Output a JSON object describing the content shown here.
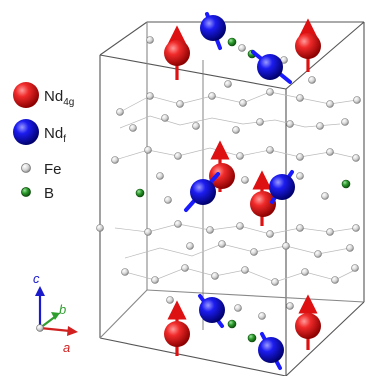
{
  "legend": {
    "items": [
      {
        "key": "nd4g",
        "label": "Nd",
        "subscript": "4g",
        "color": "#e02020"
      },
      {
        "key": "ndf",
        "label": "Nd",
        "subscript": "f",
        "color": "#1a1aff"
      },
      {
        "key": "fe",
        "label": "Fe",
        "subscript": "",
        "color": "#d9d9d9"
      },
      {
        "key": "b",
        "label": "B",
        "subscript": "",
        "color": "#2e9e2e"
      }
    ]
  },
  "axes": {
    "c": {
      "label": "c",
      "color": "#1a1acc"
    },
    "b": {
      "label": "b",
      "color": "#2e9e2e"
    },
    "a": {
      "label": "a",
      "color": "#d02020"
    }
  },
  "colors": {
    "cell_edge": "#555555",
    "spin_arrow": "#dd1111",
    "spin_arrow_f": "#1a1aff"
  }
}
